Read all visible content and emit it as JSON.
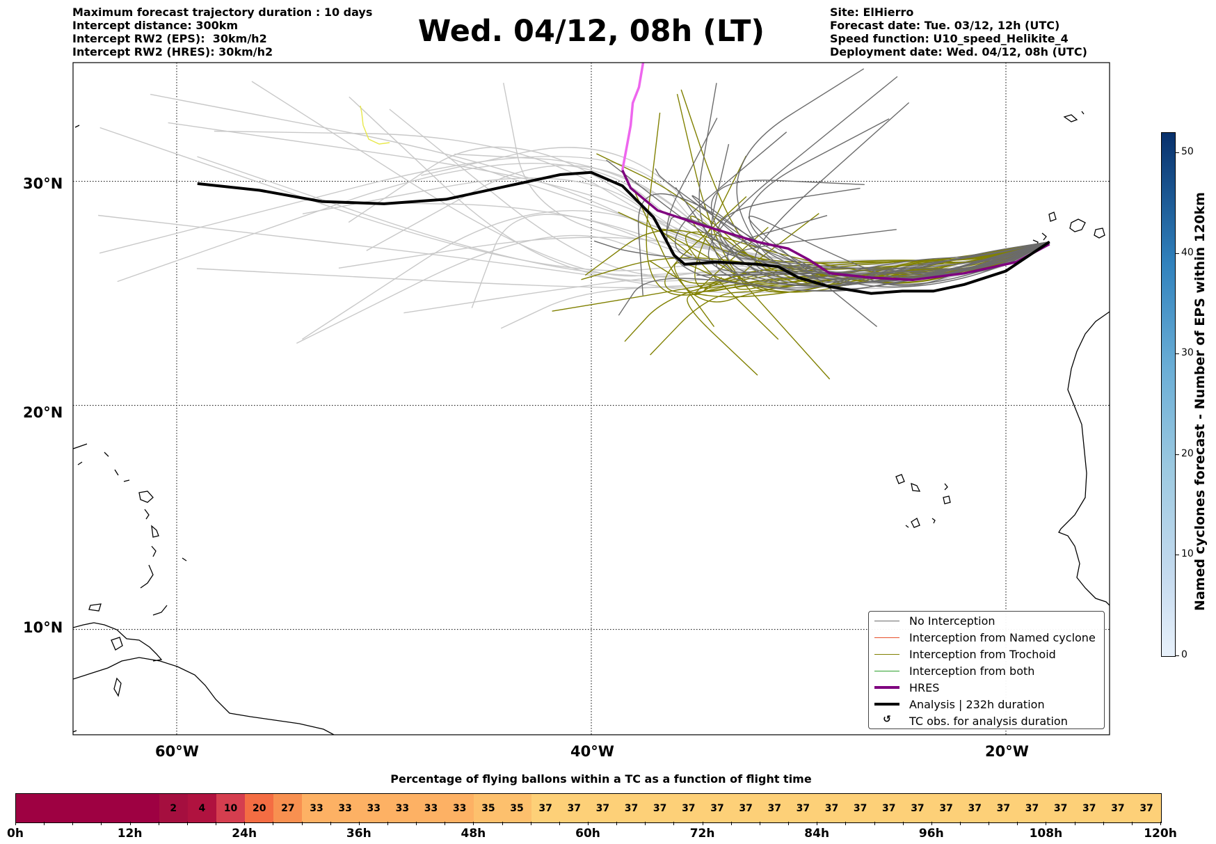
{
  "header_left": [
    "Maximum forecast trajectory duration : 10 days",
    "Intercept distance: 300km",
    "Intercept RW2 (EPS):  30km/h2",
    "Intercept RW2 (HRES): 30km/h2"
  ],
  "title": "Wed. 04/12, 08h (LT)",
  "header_right": [
    "Site: ElHierro",
    "Forecast date: Tue. 03/12, 12h (UTC)",
    "Speed function: U10_speed_Helikite_4",
    "Deployment date: Wed. 04/12, 08h (UTC)"
  ],
  "map": {
    "lat_labels": [
      "30°N",
      "20°N",
      "10°N"
    ],
    "lon_labels": [
      "60°W",
      "40°W",
      "20°W"
    ],
    "extent": {
      "lon_min": -65,
      "lon_max": -15,
      "lat_min": 5.3,
      "lat_max": 35.3
    },
    "gridlines": true,
    "hres_track": [
      [
        -37.5,
        35.3
      ],
      [
        -37.7,
        34.2
      ],
      [
        -38,
        33.5
      ],
      [
        -38.1,
        32.5
      ],
      [
        -38.3,
        31.5
      ],
      [
        -38.5,
        30.5
      ],
      [
        -38.1,
        29.7
      ],
      [
        -36.8,
        28.7
      ],
      [
        -34.5,
        28
      ],
      [
        -32,
        27.3
      ],
      [
        -30.5,
        27
      ],
      [
        -29.5,
        26.5
      ],
      [
        -28.5,
        25.9
      ],
      [
        -26.5,
        25.7
      ],
      [
        -24.5,
        25.6
      ],
      [
        -22,
        25.9
      ],
      [
        -19.5,
        26.4
      ],
      [
        -17.9,
        27.2
      ]
    ],
    "hres_pink_until_index": 5,
    "analysis_track": [
      [
        -59,
        29.9
      ],
      [
        -56,
        29.6
      ],
      [
        -53,
        29.1
      ],
      [
        -50,
        29
      ],
      [
        -47,
        29.2
      ],
      [
        -44,
        29.8
      ],
      [
        -41.5,
        30.3
      ],
      [
        -40,
        30.4
      ],
      [
        -38.5,
        29.8
      ],
      [
        -37,
        28.4
      ],
      [
        -36,
        26.7
      ],
      [
        -35.5,
        26.3
      ],
      [
        -34,
        26.4
      ],
      [
        -32,
        26.3
      ],
      [
        -31,
        26.2
      ],
      [
        -30,
        25.7
      ],
      [
        -28.5,
        25.3
      ],
      [
        -26.5,
        25
      ],
      [
        -25,
        25.1
      ],
      [
        -23.5,
        25.1
      ],
      [
        -22,
        25.4
      ],
      [
        -20,
        26
      ],
      [
        -17.9,
        27.3
      ]
    ],
    "colors": {
      "no_interception": "#6b6b6b",
      "named_cyclone": "#e8502a",
      "trochoid": "#808000",
      "both": "#2ca02c",
      "hres": "#7f007f",
      "hres_early": "#ee66ee",
      "analysis": "#000000",
      "light_tracks": "#c8c8c8"
    }
  },
  "legend": [
    {
      "label": "No Interception",
      "style": "thin",
      "color": "#6b6b6b"
    },
    {
      "label": "Interception from Named cyclone",
      "style": "thin",
      "color": "#e8502a"
    },
    {
      "label": "Interception from Trochoid",
      "style": "thin",
      "color": "#808000"
    },
    {
      "label": "Interception from both",
      "style": "thin",
      "color": "#2ca02c"
    },
    {
      "label": "HRES",
      "style": "thick",
      "color": "#7f007f"
    },
    {
      "label": "Analysis | 232h duration",
      "style": "thick",
      "color": "#000000"
    },
    {
      "label": "TC obs. for analysis duration",
      "style": "symbol",
      "color": "#000000"
    }
  ],
  "colorbar": {
    "label": "Named cyclones forecast - Number of EPS within 120km",
    "ticks": [
      "0",
      "10",
      "20",
      "30",
      "40",
      "50"
    ],
    "min": 0,
    "max": 52
  },
  "percentage_bar": {
    "title": "Percentage of flying ballons within a TC as a function of flight time",
    "cells": [
      "",
      "",
      "",
      "",
      "",
      "2",
      "4",
      "10",
      "20",
      "27",
      "33",
      "33",
      "33",
      "33",
      "33",
      "33",
      "35",
      "35",
      "37",
      "37",
      "37",
      "37",
      "37",
      "37",
      "37",
      "37",
      "37",
      "37",
      "37",
      "37",
      "37",
      "37",
      "37",
      "37",
      "37",
      "37",
      "37",
      "37",
      "37",
      "37"
    ],
    "x_ticks": [
      "0h",
      "12h",
      "24h",
      "36h",
      "48h",
      "60h",
      "72h",
      "84h",
      "96h",
      "108h",
      "120h"
    ]
  }
}
